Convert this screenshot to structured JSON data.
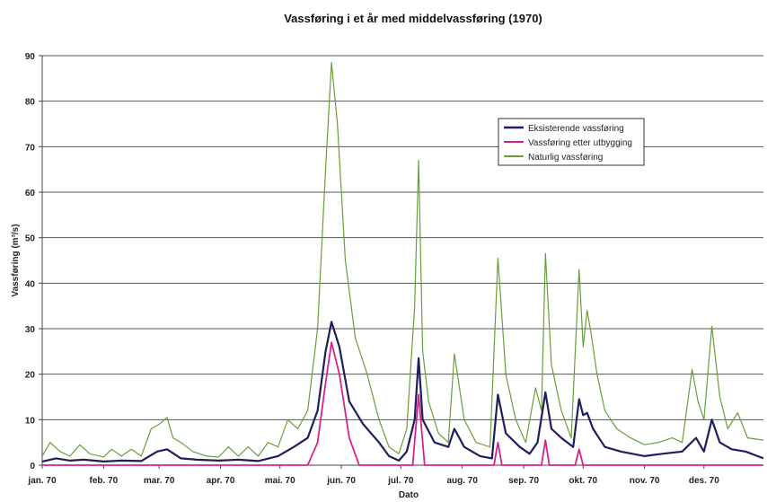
{
  "chart_data": {
    "type": "line",
    "title": "Vassføring i et år med middelvassføring (1970)",
    "xlabel": "Dato",
    "ylabel": "Vassføring (m³/s)",
    "ylim": [
      0,
      90
    ],
    "yticks": [
      0,
      10,
      20,
      30,
      40,
      50,
      60,
      70,
      80,
      90
    ],
    "xlim": [
      "1970-01-01",
      "1970-12-31"
    ],
    "grid": true,
    "legend_position": "top-right",
    "x_ticks": [
      {
        "label": "jan. 70",
        "date": "1970-01-01"
      },
      {
        "label": "feb. 70",
        "date": "1970-02-01"
      },
      {
        "label": "mar. 70",
        "date": "1970-03-01"
      },
      {
        "label": "apr. 70",
        "date": "1970-04-01"
      },
      {
        "label": "mai. 70",
        "date": "1970-05-01"
      },
      {
        "label": "jun. 70",
        "date": "1970-06-01"
      },
      {
        "label": "jul. 70",
        "date": "1970-07-01"
      },
      {
        "label": "aug. 70",
        "date": "1970-08-01"
      },
      {
        "label": "sep. 70",
        "date": "1970-09-01"
      },
      {
        "label": "okt. 70",
        "date": "1970-10-01"
      },
      {
        "label": "nov. 70",
        "date": "1970-11-01"
      },
      {
        "label": "des. 70",
        "date": "1970-12-01"
      }
    ],
    "series": [
      {
        "name": "Eksisterende vassføring",
        "color": "#1f1f5c",
        "points": [
          [
            "1970-01-01",
            0.8
          ],
          [
            "1970-01-08",
            1.5
          ],
          [
            "1970-01-15",
            1.0
          ],
          [
            "1970-01-22",
            1.2
          ],
          [
            "1970-02-01",
            0.8
          ],
          [
            "1970-02-10",
            1.0
          ],
          [
            "1970-02-20",
            0.9
          ],
          [
            "1970-02-28",
            3.0
          ],
          [
            "1970-03-05",
            3.5
          ],
          [
            "1970-03-12",
            1.5
          ],
          [
            "1970-03-20",
            1.2
          ],
          [
            "1970-03-31",
            1.0
          ],
          [
            "1970-04-10",
            1.2
          ],
          [
            "1970-04-20",
            0.9
          ],
          [
            "1970-04-30",
            2.0
          ],
          [
            "1970-05-08",
            4.0
          ],
          [
            "1970-05-15",
            6.0
          ],
          [
            "1970-05-20",
            12.0
          ],
          [
            "1970-05-24",
            25.0
          ],
          [
            "1970-05-27",
            31.5
          ],
          [
            "1970-05-31",
            26.0
          ],
          [
            "1970-06-05",
            14.0
          ],
          [
            "1970-06-12",
            9.0
          ],
          [
            "1970-06-20",
            5.0
          ],
          [
            "1970-06-25",
            2.0
          ],
          [
            "1970-06-30",
            1.0
          ],
          [
            "1970-07-04",
            3.0
          ],
          [
            "1970-07-08",
            10.0
          ],
          [
            "1970-07-10",
            23.5
          ],
          [
            "1970-07-12",
            10.0
          ],
          [
            "1970-07-18",
            5.0
          ],
          [
            "1970-07-25",
            4.0
          ],
          [
            "1970-07-28",
            8.0
          ],
          [
            "1970-08-02",
            4.0
          ],
          [
            "1970-08-10",
            2.0
          ],
          [
            "1970-08-16",
            1.5
          ],
          [
            "1970-08-19",
            15.5
          ],
          [
            "1970-08-23",
            7.0
          ],
          [
            "1970-08-30",
            4.0
          ],
          [
            "1970-09-04",
            2.5
          ],
          [
            "1970-09-08",
            5.0
          ],
          [
            "1970-09-12",
            16.0
          ],
          [
            "1970-09-15",
            8.0
          ],
          [
            "1970-09-20",
            6.0
          ],
          [
            "1970-09-26",
            4.0
          ],
          [
            "1970-09-29",
            14.5
          ],
          [
            "1970-10-01",
            11.0
          ],
          [
            "1970-10-03",
            11.5
          ],
          [
            "1970-10-06",
            8.0
          ],
          [
            "1970-10-12",
            4.0
          ],
          [
            "1970-10-20",
            3.0
          ],
          [
            "1970-11-01",
            2.0
          ],
          [
            "1970-11-10",
            2.5
          ],
          [
            "1970-11-20",
            3.0
          ],
          [
            "1970-11-27",
            6.0
          ],
          [
            "1970-12-01",
            3.0
          ],
          [
            "1970-12-05",
            10.0
          ],
          [
            "1970-12-09",
            5.0
          ],
          [
            "1970-12-15",
            3.5
          ],
          [
            "1970-12-22",
            3.0
          ],
          [
            "1970-12-31",
            1.5
          ]
        ]
      },
      {
        "name": "Vassføring etter utbygging",
        "color": "#d4238f",
        "points": [
          [
            "1970-01-01",
            0
          ],
          [
            "1970-05-15",
            0
          ],
          [
            "1970-05-20",
            5.0
          ],
          [
            "1970-05-24",
            18.0
          ],
          [
            "1970-05-27",
            27.0
          ],
          [
            "1970-05-31",
            20.0
          ],
          [
            "1970-06-05",
            6.0
          ],
          [
            "1970-06-10",
            0
          ],
          [
            "1970-07-07",
            0
          ],
          [
            "1970-07-10",
            15.5
          ],
          [
            "1970-07-13",
            0
          ],
          [
            "1970-08-17",
            0
          ],
          [
            "1970-08-19",
            5.0
          ],
          [
            "1970-08-21",
            0
          ],
          [
            "1970-09-10",
            0
          ],
          [
            "1970-09-12",
            5.5
          ],
          [
            "1970-09-14",
            0
          ],
          [
            "1970-09-27",
            0
          ],
          [
            "1970-09-29",
            3.5
          ],
          [
            "1970-10-01",
            0
          ],
          [
            "1970-12-31",
            0
          ]
        ]
      },
      {
        "name": "Naturlig vassføring",
        "color": "#6b9e3a",
        "points": [
          [
            "1970-01-01",
            2.0
          ],
          [
            "1970-01-05",
            5.0
          ],
          [
            "1970-01-10",
            3.0
          ],
          [
            "1970-01-15",
            2.0
          ],
          [
            "1970-01-20",
            4.5
          ],
          [
            "1970-01-25",
            2.5
          ],
          [
            "1970-02-01",
            1.8
          ],
          [
            "1970-02-05",
            3.5
          ],
          [
            "1970-02-10",
            2.0
          ],
          [
            "1970-02-15",
            3.5
          ],
          [
            "1970-02-20",
            2.0
          ],
          [
            "1970-02-25",
            8.0
          ],
          [
            "1970-03-01",
            9.0
          ],
          [
            "1970-03-05",
            10.5
          ],
          [
            "1970-03-08",
            6.0
          ],
          [
            "1970-03-12",
            5.0
          ],
          [
            "1970-03-18",
            3.0
          ],
          [
            "1970-03-25",
            2.0
          ],
          [
            "1970-03-31",
            1.8
          ],
          [
            "1970-04-05",
            4.0
          ],
          [
            "1970-04-10",
            2.0
          ],
          [
            "1970-04-15",
            4.0
          ],
          [
            "1970-04-20",
            2.0
          ],
          [
            "1970-04-25",
            5.0
          ],
          [
            "1970-04-30",
            4.0
          ],
          [
            "1970-05-05",
            10.0
          ],
          [
            "1970-05-10",
            8.0
          ],
          [
            "1970-05-15",
            12.0
          ],
          [
            "1970-05-20",
            30.0
          ],
          [
            "1970-05-24",
            65.0
          ],
          [
            "1970-05-27",
            88.5
          ],
          [
            "1970-05-30",
            75.0
          ],
          [
            "1970-06-03",
            45.0
          ],
          [
            "1970-06-08",
            28.0
          ],
          [
            "1970-06-14",
            20.0
          ],
          [
            "1970-06-20",
            10.0
          ],
          [
            "1970-06-25",
            4.0
          ],
          [
            "1970-06-30",
            2.5
          ],
          [
            "1970-07-04",
            8.0
          ],
          [
            "1970-07-08",
            35.0
          ],
          [
            "1970-07-10",
            67.0
          ],
          [
            "1970-07-12",
            25.0
          ],
          [
            "1970-07-15",
            14.0
          ],
          [
            "1970-07-20",
            7.0
          ],
          [
            "1970-07-25",
            5.0
          ],
          [
            "1970-07-28",
            24.5
          ],
          [
            "1970-08-02",
            10.0
          ],
          [
            "1970-08-08",
            5.0
          ],
          [
            "1970-08-15",
            4.0
          ],
          [
            "1970-08-19",
            45.5
          ],
          [
            "1970-08-23",
            20.0
          ],
          [
            "1970-08-28",
            10.0
          ],
          [
            "1970-09-02",
            5.0
          ],
          [
            "1970-09-07",
            17.0
          ],
          [
            "1970-09-10",
            12.0
          ],
          [
            "1970-09-12",
            46.5
          ],
          [
            "1970-09-15",
            22.0
          ],
          [
            "1970-09-20",
            12.0
          ],
          [
            "1970-09-25",
            6.0
          ],
          [
            "1970-09-29",
            43.0
          ],
          [
            "1970-10-01",
            26.0
          ],
          [
            "1970-10-03",
            34.0
          ],
          [
            "1970-10-05",
            29.0
          ],
          [
            "1970-10-08",
            20.0
          ],
          [
            "1970-10-12",
            12.0
          ],
          [
            "1970-10-18",
            8.0
          ],
          [
            "1970-10-25",
            6.0
          ],
          [
            "1970-11-01",
            4.5
          ],
          [
            "1970-11-08",
            5.0
          ],
          [
            "1970-11-15",
            6.0
          ],
          [
            "1970-11-20",
            5.0
          ],
          [
            "1970-11-25",
            21.0
          ],
          [
            "1970-11-28",
            14.0
          ],
          [
            "1970-12-01",
            10.0
          ],
          [
            "1970-12-05",
            30.5
          ],
          [
            "1970-12-09",
            15.0
          ],
          [
            "1970-12-13",
            8.0
          ],
          [
            "1970-12-18",
            11.5
          ],
          [
            "1970-12-23",
            6.0
          ],
          [
            "1970-12-31",
            5.5
          ]
        ]
      }
    ]
  }
}
